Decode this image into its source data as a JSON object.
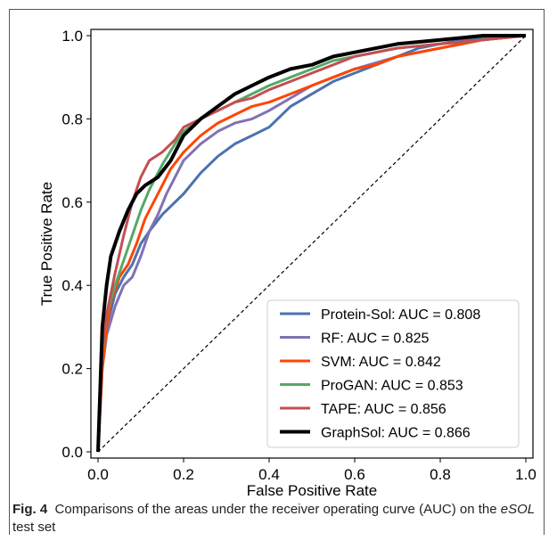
{
  "caption": {
    "label": "Fig. 4",
    "text_before": "Comparisons of the areas under the receiver operating curve (AUC) on the ",
    "italic": "eSOL",
    "text_after": " test set"
  },
  "chart_data": {
    "type": "line",
    "title": "",
    "xlabel": "False Positive Rate",
    "ylabel": "True Positive Rate",
    "xlim": [
      0,
      1
    ],
    "ylim": [
      0,
      1
    ],
    "xticks": [
      "0.0",
      "0.2",
      "0.4",
      "0.6",
      "0.8",
      "1.0"
    ],
    "yticks": [
      "0.0",
      "0.2",
      "0.4",
      "0.6",
      "0.8",
      "1.0"
    ],
    "grid": false,
    "legend_position": "bottom-right",
    "series": [
      {
        "name": "Protein-Sol: AUC = 0.808",
        "color": "#4c72b0",
        "x": [
          0,
          0.01,
          0.02,
          0.04,
          0.06,
          0.08,
          0.1,
          0.12,
          0.15,
          0.18,
          0.2,
          0.24,
          0.28,
          0.32,
          0.36,
          0.4,
          0.45,
          0.5,
          0.55,
          0.6,
          0.65,
          0.7,
          0.75,
          0.8,
          0.85,
          0.9,
          0.95,
          1.0
        ],
        "y": [
          0,
          0.22,
          0.3,
          0.38,
          0.42,
          0.45,
          0.5,
          0.53,
          0.57,
          0.6,
          0.62,
          0.67,
          0.71,
          0.74,
          0.76,
          0.78,
          0.83,
          0.86,
          0.89,
          0.91,
          0.93,
          0.95,
          0.97,
          0.98,
          0.99,
          0.995,
          1.0,
          1.0
        ]
      },
      {
        "name": "RF: AUC = 0.825",
        "color": "#8172b2",
        "x": [
          0,
          0.01,
          0.02,
          0.04,
          0.06,
          0.08,
          0.1,
          0.12,
          0.14,
          0.16,
          0.18,
          0.2,
          0.24,
          0.28,
          0.32,
          0.36,
          0.4,
          0.45,
          0.5,
          0.55,
          0.6,
          0.7,
          0.8,
          0.9,
          1.0
        ],
        "y": [
          0,
          0.2,
          0.28,
          0.35,
          0.4,
          0.42,
          0.47,
          0.53,
          0.57,
          0.62,
          0.66,
          0.7,
          0.74,
          0.77,
          0.79,
          0.8,
          0.82,
          0.85,
          0.88,
          0.9,
          0.92,
          0.95,
          0.97,
          0.99,
          1.0
        ]
      },
      {
        "name": "SVM: AUC = 0.842",
        "color": "#ff4500",
        "x": [
          0,
          0.01,
          0.02,
          0.03,
          0.05,
          0.07,
          0.09,
          0.11,
          0.14,
          0.17,
          0.2,
          0.24,
          0.28,
          0.32,
          0.36,
          0.4,
          0.45,
          0.5,
          0.55,
          0.6,
          0.65,
          0.7,
          0.8,
          0.9,
          1.0
        ],
        "y": [
          0,
          0.2,
          0.3,
          0.36,
          0.42,
          0.45,
          0.5,
          0.56,
          0.62,
          0.68,
          0.72,
          0.76,
          0.79,
          0.81,
          0.83,
          0.84,
          0.86,
          0.88,
          0.9,
          0.92,
          0.93,
          0.95,
          0.97,
          0.99,
          1.0
        ]
      },
      {
        "name": "ProGAN: AUC = 0.853",
        "color": "#55a868",
        "x": [
          0,
          0.01,
          0.02,
          0.04,
          0.06,
          0.08,
          0.1,
          0.12,
          0.15,
          0.18,
          0.2,
          0.24,
          0.28,
          0.32,
          0.36,
          0.4,
          0.45,
          0.5,
          0.55,
          0.6,
          0.7,
          0.8,
          0.9,
          1.0
        ],
        "y": [
          0,
          0.24,
          0.33,
          0.4,
          0.46,
          0.52,
          0.58,
          0.63,
          0.69,
          0.74,
          0.77,
          0.8,
          0.82,
          0.84,
          0.86,
          0.88,
          0.9,
          0.92,
          0.94,
          0.95,
          0.97,
          0.98,
          0.99,
          1.0
        ]
      },
      {
        "name": "TAPE: AUC = 0.856",
        "color": "#c44e52",
        "x": [
          0,
          0.01,
          0.02,
          0.04,
          0.06,
          0.08,
          0.1,
          0.12,
          0.15,
          0.18,
          0.2,
          0.24,
          0.28,
          0.32,
          0.36,
          0.4,
          0.45,
          0.5,
          0.55,
          0.6,
          0.7,
          0.8,
          0.9,
          1.0
        ],
        "y": [
          0,
          0.25,
          0.33,
          0.43,
          0.52,
          0.6,
          0.66,
          0.7,
          0.72,
          0.75,
          0.78,
          0.8,
          0.82,
          0.84,
          0.85,
          0.87,
          0.89,
          0.91,
          0.93,
          0.95,
          0.97,
          0.98,
          0.99,
          1.0
        ]
      },
      {
        "name": "GraphSol: AUC = 0.866",
        "color": "#000000",
        "x": [
          0,
          0.01,
          0.02,
          0.03,
          0.05,
          0.07,
          0.09,
          0.11,
          0.14,
          0.17,
          0.2,
          0.24,
          0.28,
          0.32,
          0.36,
          0.4,
          0.45,
          0.5,
          0.55,
          0.6,
          0.7,
          0.8,
          0.9,
          1.0
        ],
        "y": [
          0,
          0.3,
          0.4,
          0.47,
          0.53,
          0.58,
          0.62,
          0.64,
          0.66,
          0.7,
          0.76,
          0.8,
          0.83,
          0.86,
          0.88,
          0.9,
          0.92,
          0.93,
          0.95,
          0.96,
          0.98,
          0.99,
          1.0,
          1.0
        ]
      }
    ],
    "reference_line": {
      "x": [
        0,
        1
      ],
      "y": [
        0,
        1
      ],
      "style": "dashed",
      "color": "#000000"
    }
  }
}
